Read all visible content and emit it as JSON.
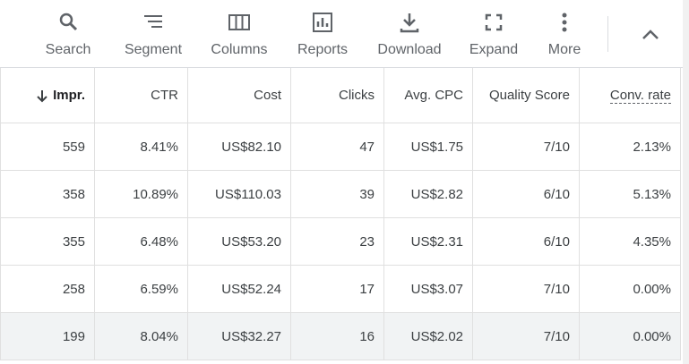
{
  "toolbar": {
    "items": [
      "Search",
      "Segment",
      "Columns",
      "Reports",
      "Download",
      "Expand",
      "More"
    ]
  },
  "table": {
    "headers": [
      "Impr.",
      "CTR",
      "Cost",
      "Clicks",
      "Avg. CPC",
      "Quality Score",
      "Conv. rate"
    ],
    "rows": [
      [
        "559",
        "8.41%",
        "US$82.10",
        "47",
        "US$1.75",
        "7/10",
        "2.13%"
      ],
      [
        "358",
        "10.89%",
        "US$110.03",
        "39",
        "US$2.82",
        "6/10",
        "5.13%"
      ],
      [
        "355",
        "6.48%",
        "US$53.20",
        "23",
        "US$2.31",
        "6/10",
        "4.35%"
      ],
      [
        "258",
        "6.59%",
        "US$52.24",
        "17",
        "US$3.07",
        "7/10",
        "0.00%"
      ],
      [
        "199",
        "8.04%",
        "US$32.27",
        "16",
        "US$2.02",
        "7/10",
        "0.00%"
      ]
    ]
  }
}
